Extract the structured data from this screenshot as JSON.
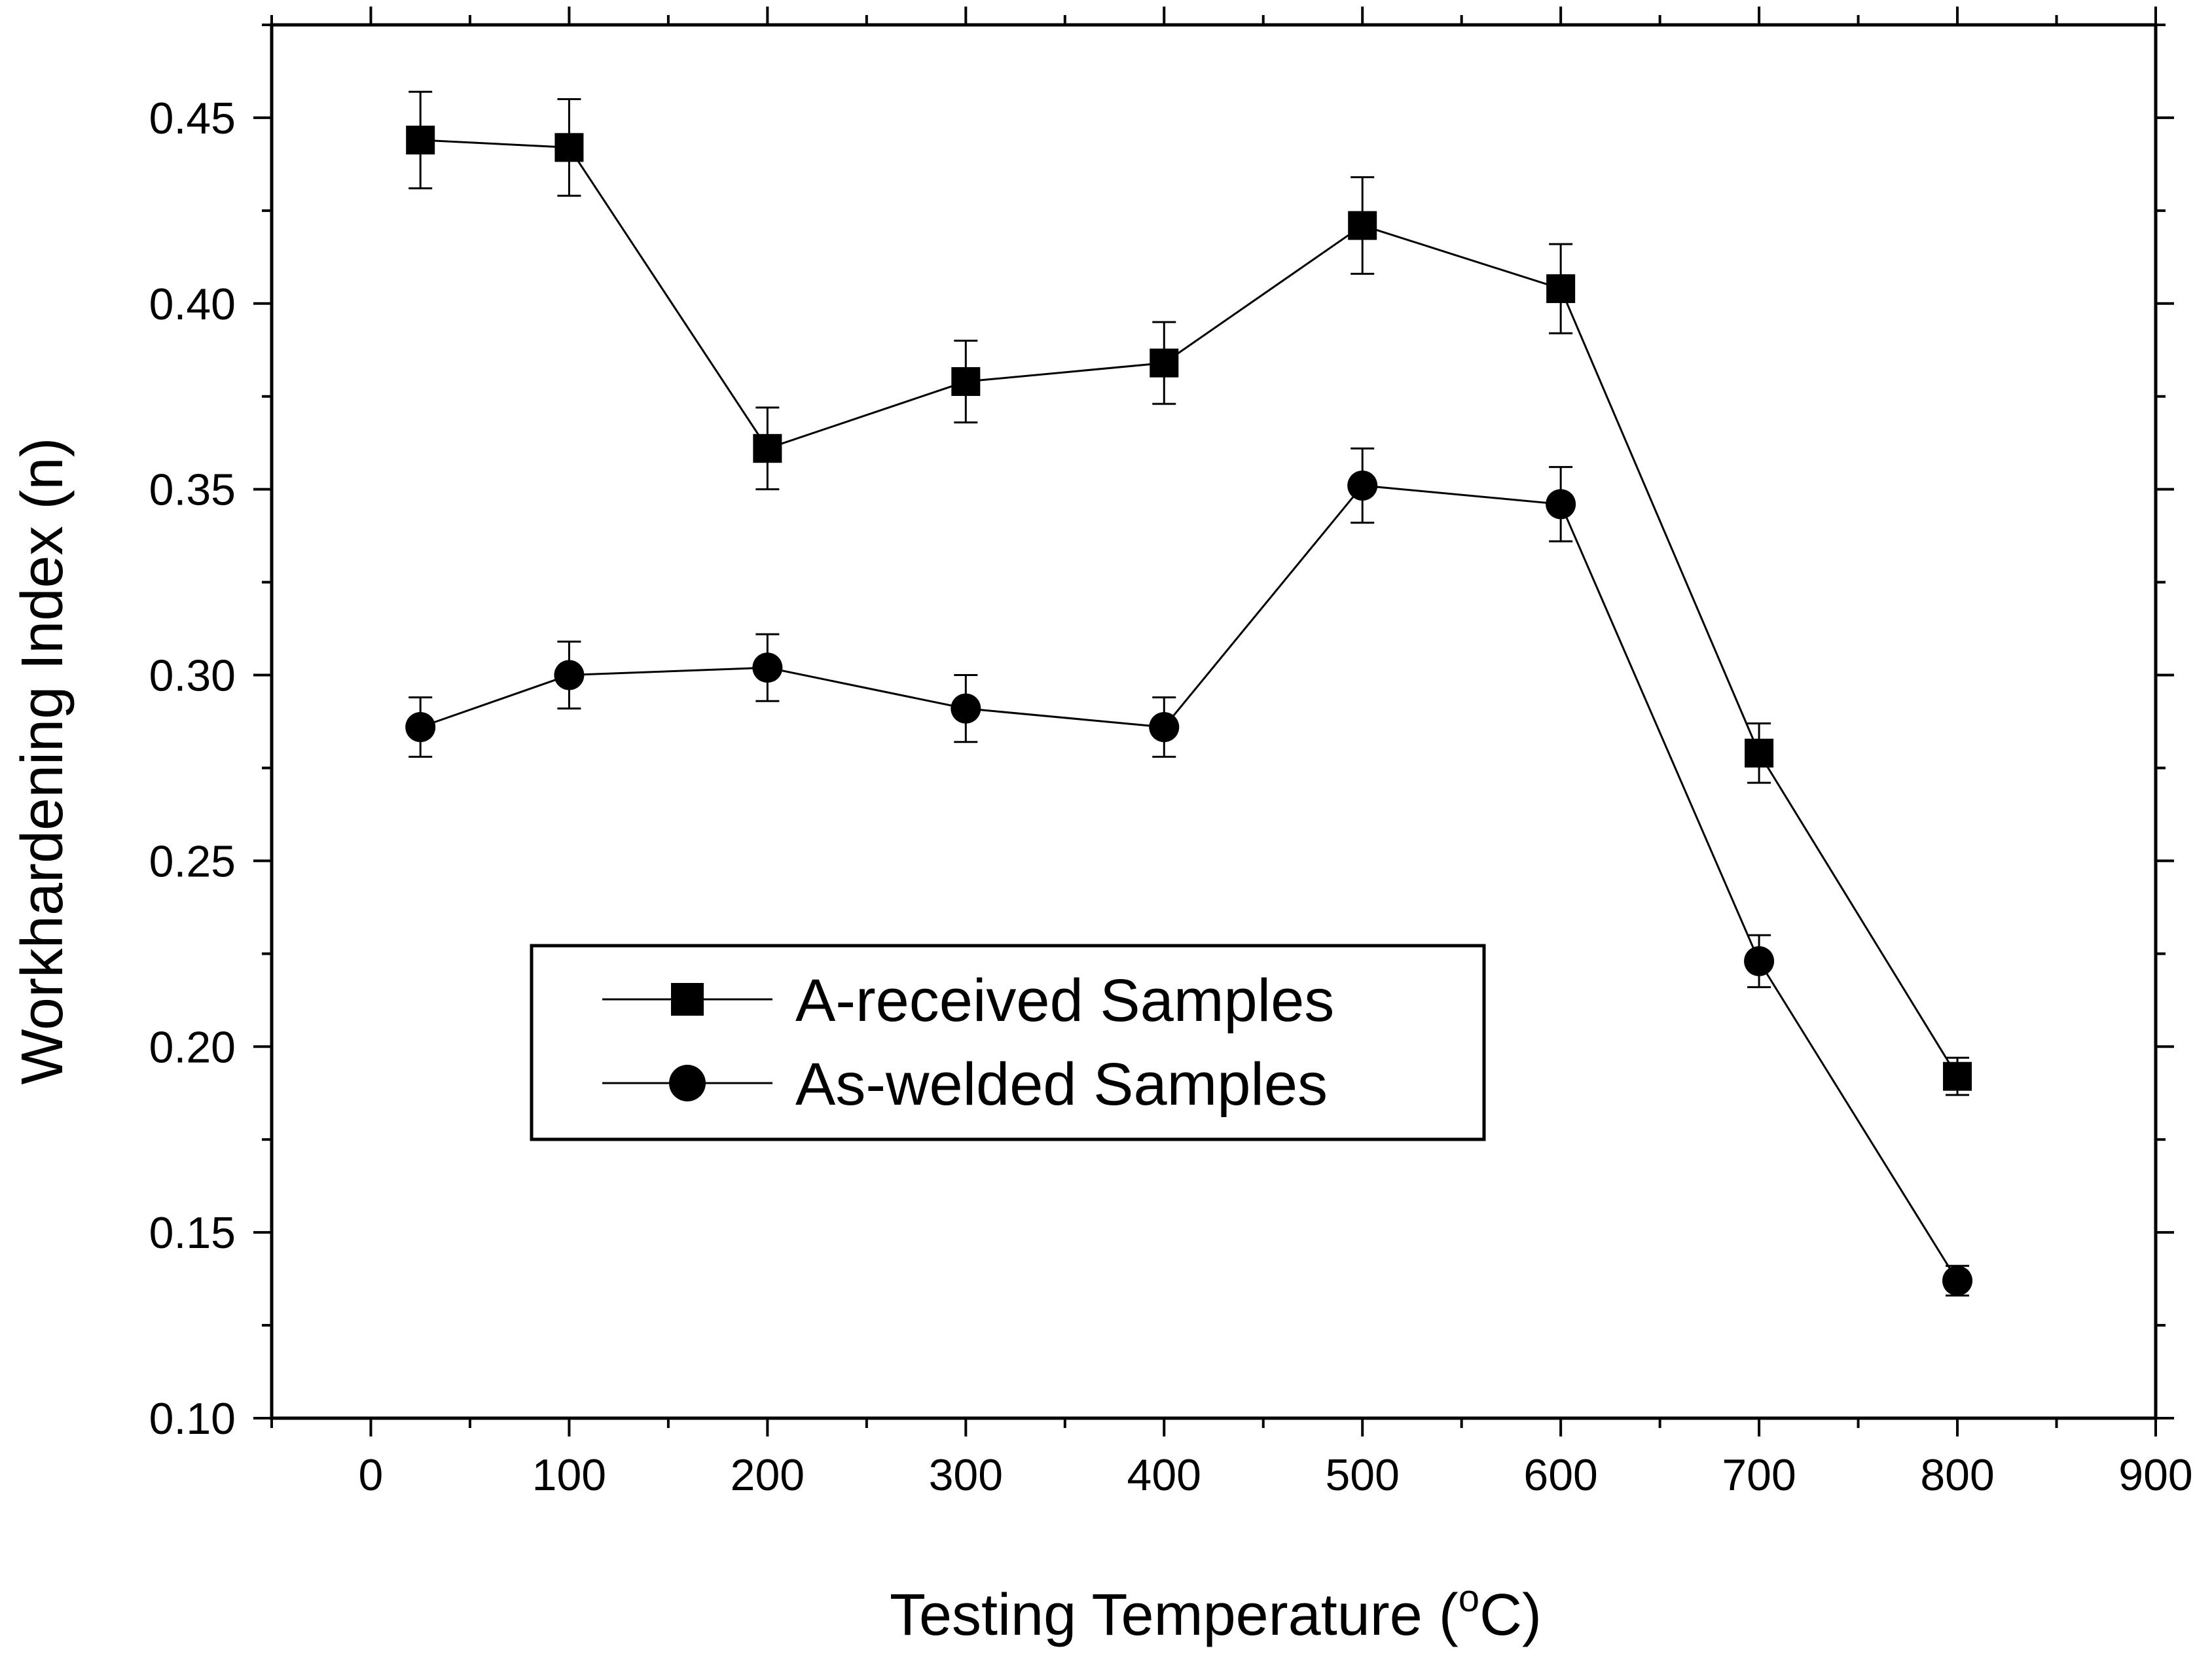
{
  "colors": {
    "ink": "#000000",
    "background": "#ffffff"
  },
  "chart_data": {
    "type": "line",
    "title": "",
    "xlabel": "Testing Temperature (",
    "xlabel_sup": "o",
    "xlabel_unit": "C)",
    "ylabel": "Workhardening Index (n)",
    "xlim": [
      -50,
      900
    ],
    "ylim": [
      0.1,
      0.475
    ],
    "x_ticks": [
      0,
      100,
      200,
      300,
      400,
      500,
      600,
      700,
      800,
      900
    ],
    "x_tick_labels": [
      "0",
      "100",
      "200",
      "300",
      "400",
      "500",
      "600",
      "700",
      "800",
      "900"
    ],
    "y_ticks": [
      0.1,
      0.15,
      0.2,
      0.25,
      0.3,
      0.35,
      0.4,
      0.45
    ],
    "y_tick_labels": [
      "0.10",
      "0.15",
      "0.20",
      "0.25",
      "0.30",
      "0.35",
      "0.40",
      "0.45"
    ],
    "grid": false,
    "legend_position": "center-left",
    "series": [
      {
        "name": "A-received Samples",
        "marker": "square",
        "x": [
          25,
          100,
          200,
          300,
          400,
          500,
          600,
          700,
          800
        ],
        "values": [
          0.444,
          0.442,
          0.361,
          0.379,
          0.384,
          0.421,
          0.404,
          0.279,
          0.192
        ],
        "errors": [
          0.013,
          0.013,
          0.011,
          0.011,
          0.011,
          0.013,
          0.012,
          0.008,
          0.005
        ]
      },
      {
        "name": "As-welded Samples",
        "marker": "circle",
        "x": [
          25,
          100,
          200,
          300,
          400,
          500,
          600,
          700,
          800
        ],
        "values": [
          0.286,
          0.3,
          0.302,
          0.291,
          0.286,
          0.351,
          0.346,
          0.223,
          0.137
        ],
        "errors": [
          0.008,
          0.009,
          0.009,
          0.009,
          0.008,
          0.01,
          0.01,
          0.007,
          0.004
        ]
      }
    ]
  }
}
